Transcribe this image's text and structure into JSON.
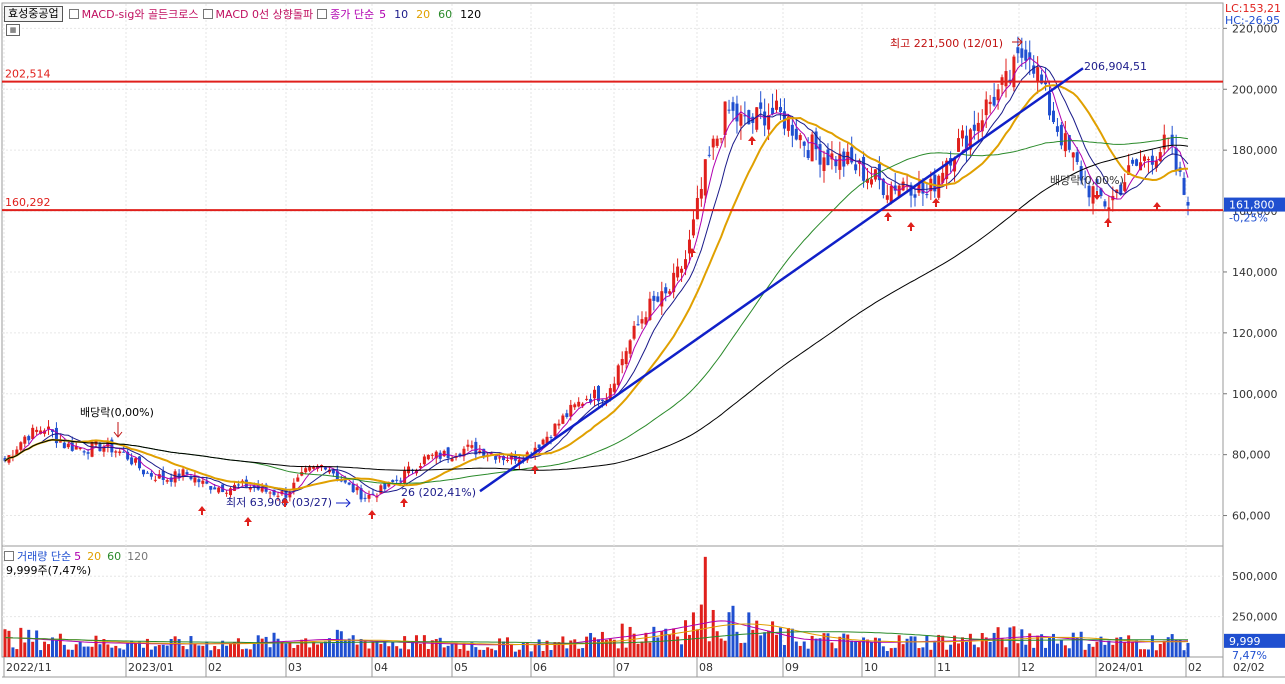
{
  "header": {
    "stock_name": "효성중공업",
    "indicators": [
      "MACD-sig와 골든크로스",
      "MACD 0선 상향돌파"
    ],
    "ma_label": "종가 단순",
    "ma_periods": [
      "5",
      "10",
      "20",
      "60",
      "120"
    ],
    "ma_colors": [
      "#b000b0",
      "#1b1b8a",
      "#e0a000",
      "#2a8a2a",
      "#000000"
    ],
    "lc": "LC:153,21",
    "hc": "HC:-26,95"
  },
  "price_annotations": {
    "high": "최고 221,500 (12/01)",
    "low": "최저 63,900 (03/27)",
    "low_pct": "26 (202,41%)",
    "dividend_1": "배당락(0,00%)",
    "dividend_2": "배당락(0,00%)",
    "line_upper": "202,514",
    "line_lower": "160,292",
    "trend_end": "206,904,51",
    "current_price": "161,800",
    "current_change": "-0,25%"
  },
  "volume_panel": {
    "label": "거래량 단순",
    "ma_periods": [
      "5",
      "20",
      "60",
      "120"
    ],
    "sub_label": "9,999주(7,47%)",
    "current_value": "9,999",
    "current_pct": "7,47%"
  },
  "colors": {
    "up": "#e0201c",
    "down": "#1f4fd0",
    "hline": "#e0201c",
    "trend": "#1020c8",
    "grid": "#e6e6e6",
    "arrow": "#e0201c",
    "label_box": "#1f4fd0",
    "lc_color": "#e0201c",
    "hc_color": "#1f4fd0"
  },
  "chart_data": [
    {
      "type": "candlestick",
      "title": "효성중공업",
      "y_axis_labels": [
        "220,000",
        "200,000",
        "180,000",
        "160,000",
        "140,000",
        "120,000",
        "100,000",
        "80,000",
        "60,000"
      ],
      "ylim": [
        50000,
        228000
      ],
      "x_axis_labels": [
        "2022/11",
        "2023/01",
        "02",
        "03",
        "04",
        "05",
        "06",
        "07",
        "08",
        "09",
        "10",
        "11",
        "12",
        "2024/01",
        "02",
        "02/02"
      ],
      "weekly_close": [
        {
          "date": "2022/11 W1",
          "close": 78000
        },
        {
          "date": "2022/11 W2",
          "close": 86000
        },
        {
          "date": "2022/11 W3",
          "close": 89000
        },
        {
          "date": "2022/12 W1",
          "close": 83000
        },
        {
          "date": "2022/12 W2",
          "close": 82000
        },
        {
          "date": "2022/12 W3",
          "close": 83000
        },
        {
          "date": "2022/12 W4",
          "close": 80000
        },
        {
          "date": "2023/01 W1",
          "close": 74000
        },
        {
          "date": "2023/01 W2",
          "close": 72000
        },
        {
          "date": "2023/01 W3",
          "close": 74000
        },
        {
          "date": "2023/01 W4",
          "close": 70000
        },
        {
          "date": "2023/02 W1",
          "close": 69000
        },
        {
          "date": "2023/02 W2",
          "close": 70000
        },
        {
          "date": "2023/02 W3",
          "close": 68000
        },
        {
          "date": "2023/02 W4",
          "close": 67000
        },
        {
          "date": "2023/03 W1",
          "close": 74000
        },
        {
          "date": "2023/03 W2",
          "close": 77000
        },
        {
          "date": "2023/03 W3",
          "close": 70000
        },
        {
          "date": "2023/03 W4",
          "close": 66000
        },
        {
          "date": "2023/04 W1",
          "close": 69000
        },
        {
          "date": "2023/04 W2",
          "close": 74000
        },
        {
          "date": "2023/04 W3",
          "close": 79000
        },
        {
          "date": "2023/04 W4",
          "close": 80000
        },
        {
          "date": "2023/05 W1",
          "close": 82000
        },
        {
          "date": "2023/05 W2",
          "close": 81000
        },
        {
          "date": "2023/05 W3",
          "close": 79000
        },
        {
          "date": "2023/05 W4",
          "close": 80000
        },
        {
          "date": "2023/06 W1",
          "close": 86000
        },
        {
          "date": "2023/06 W2",
          "close": 93000
        },
        {
          "date": "2023/06 W3",
          "close": 99000
        },
        {
          "date": "2023/06 W4",
          "close": 100000
        },
        {
          "date": "2023/07 W1",
          "close": 115000
        },
        {
          "date": "2023/07 W2",
          "close": 128000
        },
        {
          "date": "2023/07 W3",
          "close": 132000
        },
        {
          "date": "2023/07 W4",
          "close": 145000
        },
        {
          "date": "2023/08 W1",
          "close": 175000
        },
        {
          "date": "2023/08 W2",
          "close": 193000
        },
        {
          "date": "2023/08 W3",
          "close": 188000
        },
        {
          "date": "2023/08 W4",
          "close": 193000
        },
        {
          "date": "2023/09 W1",
          "close": 190000
        },
        {
          "date": "2023/09 W2",
          "close": 182000
        },
        {
          "date": "2023/09 W3",
          "close": 178000
        },
        {
          "date": "2023/09 W4",
          "close": 176000
        },
        {
          "date": "2023/10 W1",
          "close": 172000
        },
        {
          "date": "2023/10 W2",
          "close": 168000
        },
        {
          "date": "2023/10 W3",
          "close": 170000
        },
        {
          "date": "2023/10 W4",
          "close": 165000
        },
        {
          "date": "2023/11 W1",
          "close": 178000
        },
        {
          "date": "2023/11 W2",
          "close": 185000
        },
        {
          "date": "2023/11 W3",
          "close": 195000
        },
        {
          "date": "2023/11 W4",
          "close": 202000
        },
        {
          "date": "2023/12 W1",
          "close": 215000
        },
        {
          "date": "2023/12 W2",
          "close": 195000
        },
        {
          "date": "2023/12 W3",
          "close": 180000
        },
        {
          "date": "2023/12 W4",
          "close": 168000
        },
        {
          "date": "2024/01 W1",
          "close": 162000
        },
        {
          "date": "2024/01 W2",
          "close": 172000
        },
        {
          "date": "2024/01 W3",
          "close": 178000
        },
        {
          "date": "2024/01 W4",
          "close": 182000
        },
        {
          "date": "2024/02 W1",
          "close": 161800
        }
      ],
      "horizontal_lines": [
        202514,
        160292
      ],
      "trendline": {
        "start_price": 68000,
        "end_price": 206904.51
      }
    },
    {
      "type": "bar",
      "title": "거래량",
      "y_axis_labels": [
        "500,000",
        "250,000"
      ],
      "ylim": [
        0,
        650000
      ],
      "monthly_volume_estimate": [
        {
          "month": "2022/11",
          "volume": 120000
        },
        {
          "month": "2022/12",
          "volume": 90000
        },
        {
          "month": "2023/01",
          "volume": 80000
        },
        {
          "month": "2023/02",
          "volume": 85000
        },
        {
          "month": "2023/03",
          "volume": 110000
        },
        {
          "month": "2023/04",
          "volume": 90000
        },
        {
          "month": "2023/05",
          "volume": 75000
        },
        {
          "month": "2023/06",
          "volume": 80000
        },
        {
          "month": "2023/07",
          "volume": 140000
        },
        {
          "month": "2023/08",
          "volume": 230000
        },
        {
          "month": "2023/09",
          "volume": 110000
        },
        {
          "month": "2023/10",
          "volume": 90000
        },
        {
          "month": "2023/11",
          "volume": 100000
        },
        {
          "month": "2023/12",
          "volume": 130000
        },
        {
          "month": "2024/01",
          "volume": 90000
        },
        {
          "month": "2024/02",
          "volume": 100000
        }
      ],
      "peak_volume": 620000
    }
  ]
}
